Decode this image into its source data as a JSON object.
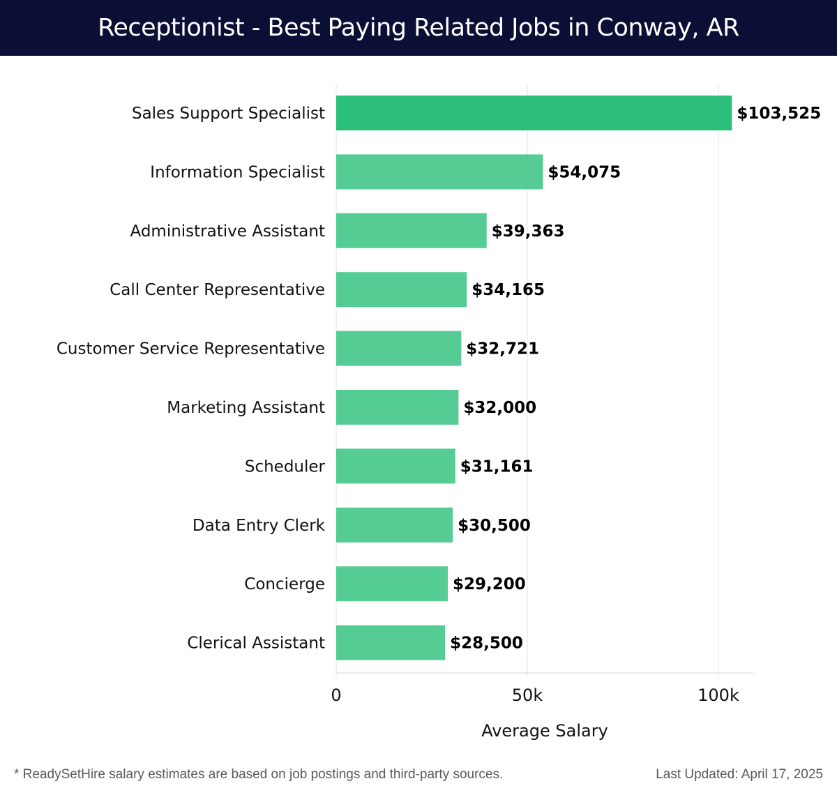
{
  "header": {
    "title": "Receptionist - Best Paying Related Jobs in Conway, AR"
  },
  "chart_data": {
    "type": "bar",
    "orientation": "horizontal",
    "title": "Receptionist - Best Paying Related Jobs in Conway, AR",
    "xlabel": "Average Salary",
    "ylabel": "",
    "xlim": [
      0,
      110000
    ],
    "xticks": [
      0,
      50000,
      100000
    ],
    "xtick_labels": [
      "0",
      "50k",
      "100k"
    ],
    "grid": true,
    "categories": [
      "Sales Support Specialist",
      "Information Specialist",
      "Administrative Assistant",
      "Call Center Representative",
      "Customer Service Representative",
      "Marketing Assistant",
      "Scheduler",
      "Data Entry Clerk",
      "Concierge",
      "Clerical Assistant"
    ],
    "values": [
      103525,
      54075,
      39363,
      34165,
      32721,
      32000,
      31161,
      30500,
      29200,
      28500
    ],
    "value_labels": [
      "$103,525",
      "$54,075",
      "$39,363",
      "$34,165",
      "$32,721",
      "$32,000",
      "$31,161",
      "$30,500",
      "$29,200",
      "$28,500"
    ],
    "colors": {
      "top_bar": "#2bbf7a",
      "bar": "#54cc94",
      "grid": "#e3e3e3",
      "axis": "#d6d6d6"
    }
  },
  "footer": {
    "note": "* ReadySetHire salary estimates are based on job postings and third-party sources.",
    "updated": "Last Updated: April 17, 2025"
  }
}
